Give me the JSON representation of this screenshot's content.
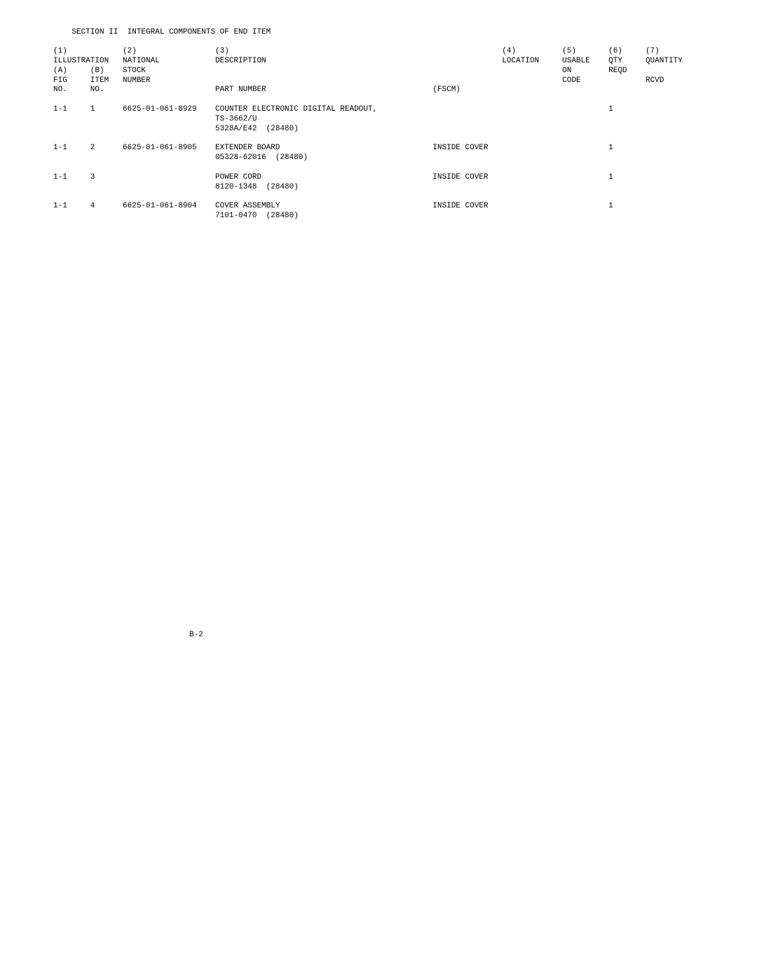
{
  "section_title_left": "SECTION II",
  "section_title_right": "INTEGRAL COMPONENTS OF END ITEM",
  "header": {
    "row1": [
      "(1)",
      "",
      "(2)",
      "(3)",
      "",
      "(4)",
      "(5)",
      "(6)",
      "(7)"
    ],
    "row2": [
      "ILLUSTRATION",
      "",
      "NATIONAL",
      "DESCRIPTION",
      "",
      "LOCATION",
      "USABLE",
      "QTY",
      "QUANTITY"
    ],
    "row3": [
      "(A)",
      "(B)",
      "STOCK",
      "",
      "",
      "",
      "ON",
      "REQD",
      ""
    ],
    "row4": [
      "FIG",
      "ITEM",
      "NUMBER",
      "",
      "",
      "",
      "CODE",
      "",
      "RCVD"
    ],
    "row5": [
      "NO.",
      "NO.",
      "",
      "PART NUMBER",
      "(FSCM)",
      "",
      "",
      "",
      ""
    ]
  },
  "rows": [
    {
      "fig": "1-1",
      "item": "1",
      "nsn": "6625-01-061-8929",
      "desc1": "COUNTER ELECTRONIC DIGITAL READOUT,",
      "desc2": "TS-3662/U",
      "desc3": "5328A/E42  (28480)",
      "location": "",
      "usable": "",
      "qty": "1",
      "rcvd": ""
    },
    {
      "fig": "1-1",
      "item": "2",
      "nsn": "6625-01-061-8905",
      "desc1": "EXTENDER BOARD",
      "desc2": "05328-62016  (28480)",
      "desc3": "",
      "location": "INSIDE COVER",
      "usable": "",
      "qty": "1",
      "rcvd": ""
    },
    {
      "fig": "1-1",
      "item": "3",
      "nsn": "",
      "desc1": "POWER CORD",
      "desc2": "8120-1348  (28480)",
      "desc3": "",
      "location": "INSIDE COVER",
      "usable": "",
      "qty": "1",
      "rcvd": ""
    },
    {
      "fig": "1-1",
      "item": "4",
      "nsn": "6625-01-061-8904",
      "desc1": "COVER ASSEMBLY",
      "desc2": "7101-0470  (28480)",
      "desc3": "",
      "location": "INSIDE COVER",
      "usable": "",
      "qty": "1",
      "rcvd": ""
    }
  ],
  "footer": "B-2",
  "layout": {
    "cols": {
      "fig": 0,
      "item": 8,
      "nsn": 15,
      "desc": 35,
      "fscm": 82,
      "loc": 97,
      "usable": 110,
      "qty": 120,
      "rcvd": 128
    }
  }
}
